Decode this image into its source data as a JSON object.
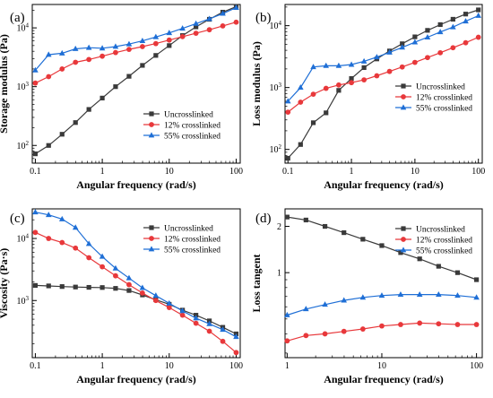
{
  "panels": [
    {
      "panel_label": "(a)",
      "chart_data": {
        "type": "line",
        "xlabel": "Angular frequency (rad/s)",
        "ylabel": "Storage modulus (Pa)",
        "xscale": "log",
        "yscale": "log",
        "xlim": [
          0.09,
          115
        ],
        "ylim": [
          50,
          25000
        ],
        "xticks": [
          {
            "value": 0.1,
            "label": "0.1"
          },
          {
            "value": 1,
            "label": "1"
          },
          {
            "value": 10,
            "label": "10"
          },
          {
            "value": 100,
            "label": "100"
          }
        ],
        "yticks": [
          {
            "value": 100,
            "label": "10",
            "exp": "2"
          },
          {
            "value": 1000,
            "label": "10",
            "exp": "3"
          },
          {
            "value": 10000,
            "label": "10",
            "exp": "4"
          }
        ],
        "legend_position": "bottom-right",
        "series": [
          {
            "name": "Uncrosslinked",
            "color": "#3a3a3a",
            "marker": "square",
            "x": [
              0.1,
              0.158,
              0.251,
              0.398,
              0.631,
              1,
              1.58,
              2.51,
              3.98,
              6.31,
              10,
              15.8,
              25.1,
              39.8,
              63.1,
              100
            ],
            "y": [
              72,
              100,
              155,
              245,
              410,
              640,
              1000,
              1500,
              2300,
              3400,
              5000,
              7400,
              10400,
              14000,
              18500,
              23000
            ]
          },
          {
            "name": "12% crosslinked",
            "color": "#e8383b",
            "marker": "circle",
            "x": [
              0.1,
              0.158,
              0.251,
              0.398,
              0.631,
              1,
              1.58,
              2.51,
              3.98,
              6.31,
              10,
              15.8,
              25.1,
              39.8,
              63.1,
              100
            ],
            "y": [
              1150,
              1480,
              2000,
              2600,
              2900,
              3300,
              3800,
              4300,
              4800,
              5400,
              6200,
              7100,
              8100,
              9300,
              10800,
              12500
            ]
          },
          {
            "name": "55% crosslinked",
            "color": "#1f6fd6",
            "marker": "triangle",
            "x": [
              0.1,
              0.158,
              0.251,
              0.398,
              0.631,
              1,
              1.58,
              2.51,
              3.98,
              6.31,
              10,
              15.8,
              25.1,
              39.8,
              63.1,
              100
            ],
            "y": [
              1900,
              3500,
              3700,
              4400,
              4600,
              4500,
              4800,
              5300,
              6000,
              7000,
              8200,
              9800,
              11800,
              14200,
              17500,
              22000
            ]
          }
        ]
      }
    },
    {
      "panel_label": "(b)",
      "chart_data": {
        "type": "line",
        "xlabel": "Angular frequency (rad/s)",
        "ylabel": "Loss modulus (Pa)",
        "xscale": "log",
        "yscale": "log",
        "xlim": [
          0.09,
          115
        ],
        "ylim": [
          60,
          22000
        ],
        "xticks": [
          {
            "value": 0.1,
            "label": "0.1"
          },
          {
            "value": 1,
            "label": "1"
          },
          {
            "value": 10,
            "label": "10"
          },
          {
            "value": 100,
            "label": "100"
          }
        ],
        "yticks": [
          {
            "value": 100,
            "label": "10",
            "exp": "2"
          },
          {
            "value": 1000,
            "label": "10",
            "exp": "3"
          },
          {
            "value": 10000,
            "label": "10",
            "exp": "4"
          }
        ],
        "legend_position": "bottom-right",
        "series": [
          {
            "name": "Uncrosslinked",
            "color": "#3a3a3a",
            "marker": "square",
            "x": [
              0.1,
              0.158,
              0.251,
              0.398,
              0.631,
              1,
              1.58,
              2.51,
              3.98,
              6.31,
              10,
              15.8,
              25.1,
              39.8,
              63.1,
              100
            ],
            "y": [
              72,
              120,
              270,
              390,
              900,
              1400,
              2100,
              2900,
              3900,
              5100,
              6600,
              8400,
              10400,
              12700,
              15400,
              18000
            ]
          },
          {
            "name": "12% crosslinked",
            "color": "#e8383b",
            "marker": "circle",
            "x": [
              0.1,
              0.158,
              0.251,
              0.398,
              0.631,
              1,
              1.58,
              2.51,
              3.98,
              6.31,
              10,
              15.8,
              25.1,
              39.8,
              63.1,
              100
            ],
            "y": [
              400,
              580,
              780,
              970,
              1100,
              1200,
              1330,
              1550,
              1820,
              2150,
              2550,
              3050,
              3650,
              4400,
              5300,
              6500
            ]
          },
          {
            "name": "55% crosslinked",
            "color": "#1f6fd6",
            "marker": "triangle",
            "x": [
              0.1,
              0.158,
              0.251,
              0.398,
              0.631,
              1,
              1.58,
              2.51,
              3.98,
              6.31,
              10,
              15.8,
              25.1,
              39.8,
              63.1,
              100
            ],
            "y": [
              600,
              1000,
              2150,
              2250,
              2250,
              2350,
              2650,
              3100,
              3700,
              4450,
              5400,
              6500,
              7900,
              9500,
              11800,
              14500
            ]
          }
        ]
      }
    },
    {
      "panel_label": "(c)",
      "chart_data": {
        "type": "line",
        "xlabel": "Angular frequency (rad/s)",
        "ylabel": "Viscosity (Pa·s)",
        "xscale": "log",
        "yscale": "log",
        "xlim": [
          0.09,
          115
        ],
        "ylim": [
          120,
          30000
        ],
        "xticks": [
          {
            "value": 0.1,
            "label": "0.1"
          },
          {
            "value": 1,
            "label": "1"
          },
          {
            "value": 10,
            "label": "10"
          },
          {
            "value": 100,
            "label": "100"
          }
        ],
        "yticks": [
          {
            "value": 1000,
            "label": "10",
            "exp": "3"
          },
          {
            "value": 10000,
            "label": "10",
            "exp": "4"
          }
        ],
        "legend_position": "top-right",
        "series": [
          {
            "name": "Uncrosslinked",
            "color": "#3a3a3a",
            "marker": "square",
            "x": [
              0.1,
              0.158,
              0.251,
              0.398,
              0.631,
              1,
              1.58,
              2.51,
              3.98,
              6.31,
              10,
              15.8,
              25.1,
              39.8,
              63.1,
              100
            ],
            "y": [
              1750,
              1720,
              1680,
              1650,
              1630,
              1620,
              1570,
              1450,
              1230,
              1030,
              870,
              700,
              580,
              470,
              370,
              290
            ]
          },
          {
            "name": "12% crosslinked",
            "color": "#e8383b",
            "marker": "circle",
            "x": [
              0.1,
              0.158,
              0.251,
              0.398,
              0.631,
              1,
              1.58,
              2.51,
              3.98,
              6.31,
              10,
              15.8,
              25.1,
              39.8,
              63.1,
              100
            ],
            "y": [
              12500,
              10000,
              8600,
              7000,
              4900,
              3500,
              2500,
              1800,
              1320,
              1000,
              770,
              580,
              430,
              320,
              220,
              145
            ]
          },
          {
            "name": "55% crosslinked",
            "color": "#1f6fd6",
            "marker": "triangle",
            "x": [
              0.1,
              0.158,
              0.251,
              0.398,
              0.631,
              1,
              1.58,
              2.51,
              3.98,
              6.31,
              10,
              15.8,
              25.1,
              39.8,
              63.1,
              100
            ],
            "y": [
              26500,
              24000,
              20500,
              15000,
              8200,
              5100,
              3300,
              2300,
              1600,
              1200,
              900,
              680,
              520,
              420,
              340,
              260
            ]
          }
        ]
      }
    },
    {
      "panel_label": "(d)",
      "chart_data": {
        "type": "line",
        "xlabel": "Angular frequency (rad/s)",
        "ylabel": "Loss tangent",
        "xscale": "log",
        "yscale": "log",
        "xlim": [
          0.95,
          115
        ],
        "ylim": [
          0.28,
          2.6
        ],
        "xticks": [
          {
            "value": 1,
            "label": "1"
          },
          {
            "value": 10,
            "label": "10"
          },
          {
            "value": 100,
            "label": "100"
          }
        ],
        "yticks": [
          {
            "value": 1,
            "label": "1",
            "exp": ""
          },
          {
            "value": 2,
            "label": "2",
            "exp": ""
          }
        ],
        "legend_position": "top-right",
        "series": [
          {
            "name": "Uncrosslinked",
            "color": "#3a3a3a",
            "marker": "square",
            "x": [
              1,
              1.58,
              2.51,
              3.98,
              6.31,
              10,
              15.8,
              25.1,
              39.8,
              63.1,
              100
            ],
            "y": [
              2.3,
              2.2,
              2.0,
              1.82,
              1.65,
              1.5,
              1.35,
              1.23,
              1.1,
              1.0,
              0.9
            ]
          },
          {
            "name": "12% crosslinked",
            "color": "#e8383b",
            "marker": "circle",
            "x": [
              1,
              1.58,
              2.51,
              3.98,
              6.31,
              10,
              15.8,
              25.1,
              39.8,
              63.1,
              100
            ],
            "y": [
              0.36,
              0.39,
              0.4,
              0.415,
              0.43,
              0.45,
              0.46,
              0.47,
              0.465,
              0.46,
              0.46
            ]
          },
          {
            "name": "55% crosslinked",
            "color": "#1f6fd6",
            "marker": "triangle",
            "x": [
              1,
              1.58,
              2.51,
              3.98,
              6.31,
              10,
              15.8,
              25.1,
              39.8,
              63.1,
              100
            ],
            "y": [
              0.53,
              0.58,
              0.62,
              0.66,
              0.69,
              0.71,
              0.72,
              0.72,
              0.72,
              0.71,
              0.69
            ]
          }
        ]
      }
    }
  ]
}
